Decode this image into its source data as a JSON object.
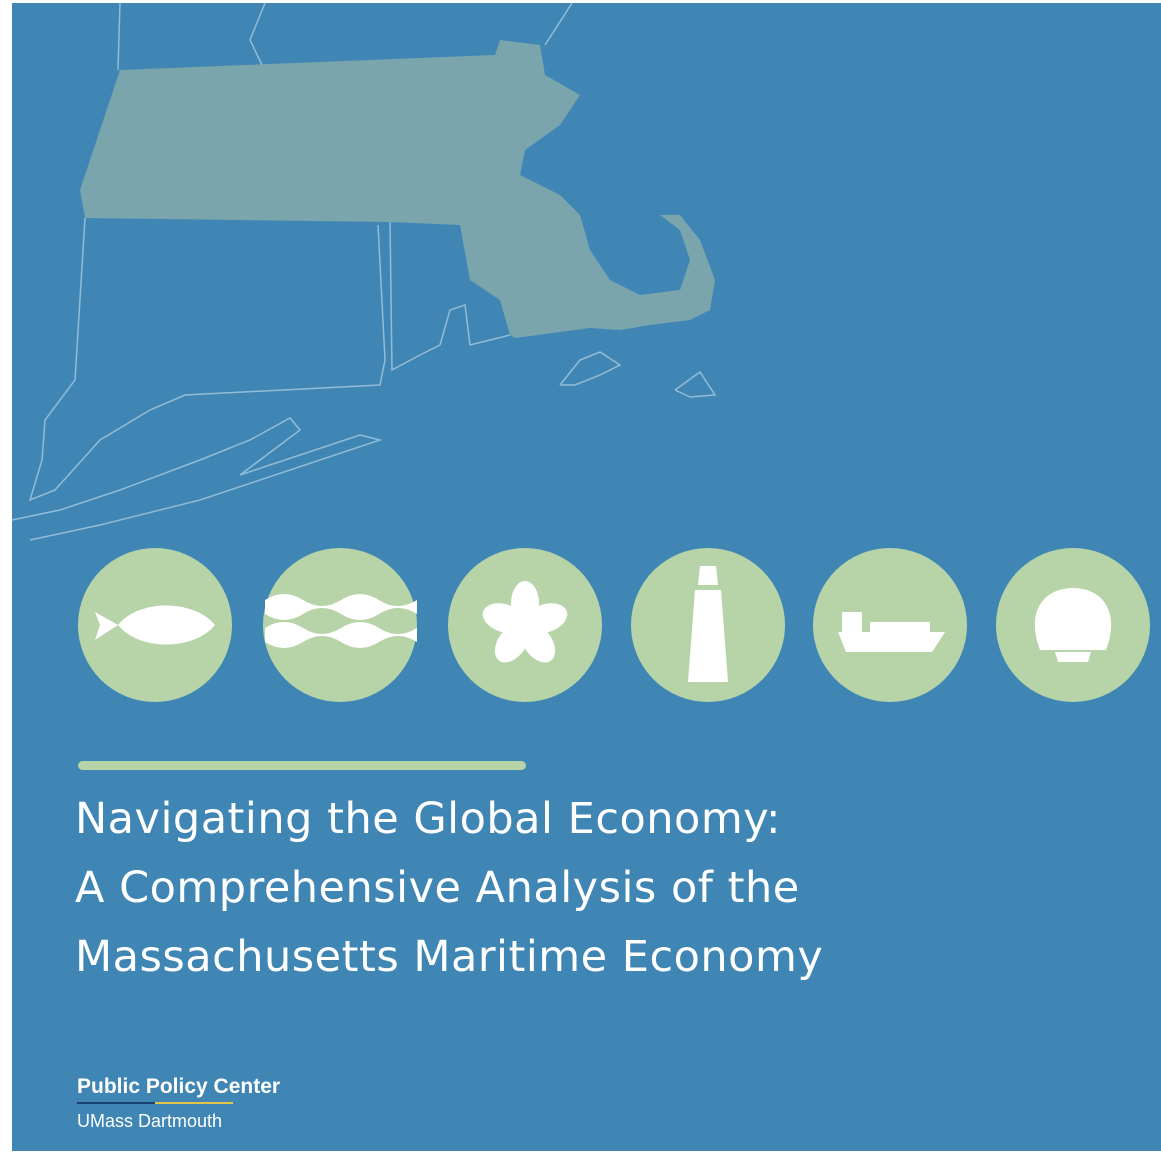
{
  "title": {
    "lines": [
      "Navigating the Global Economy:",
      "A Comprehensive Analysis of the",
      "Massachusetts Maritime Economy"
    ]
  },
  "logo": {
    "name": "Public Policy Center",
    "subtitle": "UMass Dartmouth"
  }
}
